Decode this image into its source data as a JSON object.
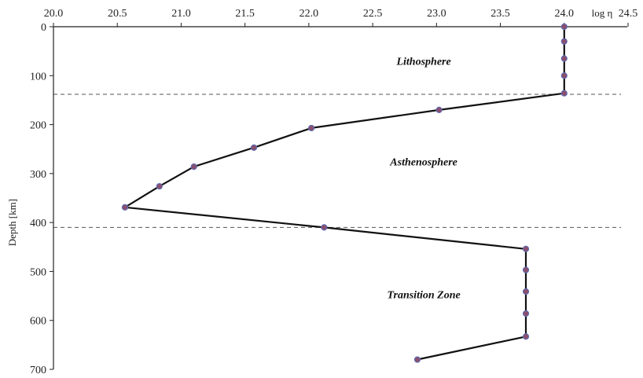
{
  "chart_data": {
    "type": "line",
    "title": "",
    "xlabel": "log η",
    "ylabel": "Depth [km]",
    "x_axis_position": "top",
    "y_axis_inverted": true,
    "xlim": [
      20.0,
      24.5
    ],
    "ylim": [
      0,
      700
    ],
    "x_ticks": [
      "20.0",
      "20.5",
      "21.0",
      "21.5",
      "22.0",
      "22.5",
      "23.0",
      "23.5",
      "24.0",
      "24.5"
    ],
    "y_ticks": [
      "0",
      "100",
      "200",
      "300",
      "400",
      "500",
      "600",
      "700"
    ],
    "grid": false,
    "series": [
      {
        "points": [
          {
            "x": 24.0,
            "y": 0
          },
          {
            "x": 24.0,
            "y": 30
          },
          {
            "x": 24.0,
            "y": 65
          },
          {
            "x": 24.0,
            "y": 100
          },
          {
            "x": 24.0,
            "y": 136
          },
          {
            "x": 23.02,
            "y": 170
          },
          {
            "x": 22.02,
            "y": 207
          },
          {
            "x": 21.57,
            "y": 247
          },
          {
            "x": 21.1,
            "y": 286
          },
          {
            "x": 20.83,
            "y": 326
          },
          {
            "x": 20.56,
            "y": 369
          },
          {
            "x": 22.12,
            "y": 410
          },
          {
            "x": 23.7,
            "y": 454
          },
          {
            "x": 23.7,
            "y": 497
          },
          {
            "x": 23.7,
            "y": 541
          },
          {
            "x": 23.7,
            "y": 586
          },
          {
            "x": 23.7,
            "y": 633
          },
          {
            "x": 22.85,
            "y": 680
          }
        ],
        "line_color": "#111111",
        "marker_color": "#8a4f6e"
      }
    ],
    "boundaries": [
      {
        "y": 138,
        "style": "dashed"
      },
      {
        "y": 410,
        "style": "dashed"
      }
    ],
    "annotations": [
      {
        "text": "Lithosphere",
        "x": 22.9,
        "y": 70
      },
      {
        "text": "Asthenosphere",
        "x": 22.9,
        "y": 275
      },
      {
        "text": "Transition Zone",
        "x": 22.9,
        "y": 547
      }
    ]
  }
}
